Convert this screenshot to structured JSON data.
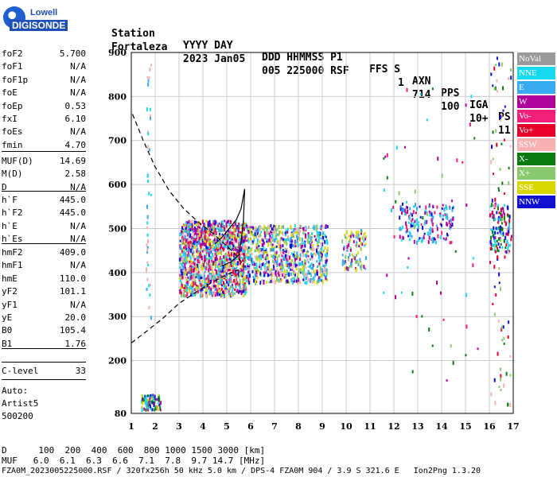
{
  "header": {
    "row1": [
      "Station",
      "YYYY DAY",
      "DDD HHMMSS P1",
      "FFS S",
      "AXN",
      "PPS",
      "IGA",
      "PS"
    ],
    "row2": [
      "Fortaleza",
      "2023 Jan05",
      "005 225000 RSF",
      "1",
      "714",
      "100",
      "10+",
      "11"
    ]
  },
  "logo": {
    "line1": "Lowell",
    "line2": "DIGISONDE"
  },
  "params": [
    {
      "name": "foF2",
      "value": "5.700"
    },
    {
      "name": "foF1",
      "value": "N/A"
    },
    {
      "name": "foF1p",
      "value": "N/A"
    },
    {
      "name": "foE",
      "value": "N/A"
    },
    {
      "name": "foEp",
      "value": "0.53"
    },
    {
      "name": "fxI",
      "value": "6.10"
    },
    {
      "name": "foEs",
      "value": "N/A"
    },
    {
      "name": "fmin",
      "value": "4.70"
    },
    {
      "name": "MUF(D)",
      "value": "14.69"
    },
    {
      "name": "M(D)",
      "value": "2.58"
    },
    {
      "name": "D",
      "value": "N/A"
    },
    {
      "name": "h`F",
      "value": "445.0"
    },
    {
      "name": "h`F2",
      "value": "445.0"
    },
    {
      "name": "h`E",
      "value": "N/A"
    },
    {
      "name": "h`Es",
      "value": "N/A"
    },
    {
      "name": "hmF2",
      "value": "409.0"
    },
    {
      "name": "hmF1",
      "value": "N/A"
    },
    {
      "name": "hmE",
      "value": "110.0"
    },
    {
      "name": "yF2",
      "value": "101.1"
    },
    {
      "name": "yF1",
      "value": "N/A"
    },
    {
      "name": "yE",
      "value": "20.0"
    },
    {
      "name": "B0",
      "value": "105.4"
    },
    {
      "name": "B1",
      "value": "1.76"
    }
  ],
  "clevel": {
    "name": "C-level",
    "value": "33"
  },
  "auto": [
    "Auto:",
    "Artist5",
    "500200"
  ],
  "legend": [
    {
      "label": "NoVal",
      "color": "#9a9a9a"
    },
    {
      "label": "NNE",
      "color": "#18d8f0"
    },
    {
      "label": "E",
      "color": "#39a9f0"
    },
    {
      "label": "W",
      "color": "#b0009a"
    },
    {
      "label": "Vo-",
      "color": "#f0207a"
    },
    {
      "label": "Vo+",
      "color": "#e8002a"
    },
    {
      "label": "SSW",
      "color": "#f8b0b0"
    },
    {
      "label": "X-",
      "color": "#0a7a10"
    },
    {
      "label": "X+",
      "color": "#8ac870"
    },
    {
      "label": "SSE",
      "color": "#d8d800"
    },
    {
      "label": "NNW",
      "color": "#1010d0"
    }
  ],
  "bottom": {
    "d_row": "D      100  200  400  600  800 1000 1500 3000 [km]",
    "muf_row": "MUF   6.0  6.1  6.3  6.6  7.1  7.8  9.7 14.7 [MHz]",
    "footer": "FZA0M_2023005225000.RSF / 320fx256h 50 kHz 5.0 km / DPS-4 FZA0M 904 / 3.9 S 321.6 E   Ion2Png 1.3.20"
  },
  "chart_data": {
    "type": "scatter",
    "x_ticks": [
      "1",
      "2",
      "3",
      "4",
      "5",
      "6",
      "7",
      "8",
      "9",
      "10",
      "11",
      "12",
      "13",
      "14",
      "15",
      "16",
      "17"
    ],
    "y_ticks": [
      "80",
      "200",
      "300",
      "400",
      "500",
      "600",
      "700",
      "800",
      "900"
    ],
    "xlim": [
      1,
      17
    ],
    "ylim": [
      80,
      900
    ],
    "grid": true,
    "clusters": [
      {
        "x": [
          3.0,
          5.8
        ],
        "y": [
          350,
          520
        ],
        "count": 1400,
        "colors": [
          "#b0009a",
          "#f0207a",
          "#18d8f0",
          "#39a9f0",
          "#f8b0b0",
          "#d8d800",
          "#e8002a",
          "#1010d0",
          "#8ac870"
        ]
      },
      {
        "x": [
          5.8,
          9.2
        ],
        "y": [
          380,
          510
        ],
        "count": 800,
        "colors": [
          "#d8d800",
          "#39a9f0",
          "#18d8f0",
          "#b0009a",
          "#8ac870",
          "#f8b0b0",
          "#1010d0"
        ]
      },
      {
        "x": [
          9.8,
          10.8
        ],
        "y": [
          410,
          500
        ],
        "count": 90,
        "colors": [
          "#d8d800",
          "#39a9f0",
          "#8ac870",
          "#b0009a"
        ]
      },
      {
        "x": [
          12.2,
          14.5
        ],
        "y": [
          470,
          560
        ],
        "count": 160,
        "colors": [
          "#b0009a",
          "#1010d0",
          "#39a9f0",
          "#f0207a",
          "#18d8f0"
        ]
      },
      {
        "x": [
          16.0,
          16.9
        ],
        "y": [
          450,
          560
        ],
        "count": 120,
        "colors": [
          "#1010d0",
          "#18d8f0",
          "#e8002a",
          "#b0009a",
          "#0a7a10"
        ]
      },
      {
        "x": [
          1.4,
          2.2
        ],
        "y": [
          90,
          125
        ],
        "count": 90,
        "colors": [
          "#1010d0",
          "#18d8f0",
          "#0a7a10",
          "#d8d800",
          "#b0009a"
        ]
      },
      {
        "x": [
          1.6,
          1.8
        ],
        "y": [
          280,
          880
        ],
        "count": 40,
        "colors": [
          "#18d8f0",
          "#39a9f0",
          "#f8b0b0"
        ]
      },
      {
        "x": [
          16.0,
          16.9
        ],
        "y": [
          100,
          900
        ],
        "count": 90,
        "colors": [
          "#0a7a10",
          "#1010d0",
          "#e8002a",
          "#f8b0b0",
          "#8ac870"
        ]
      },
      {
        "x": [
          11.5,
          15.5
        ],
        "y": [
          150,
          850
        ],
        "count": 60,
        "colors": [
          "#0a7a10",
          "#b0009a",
          "#f0207a",
          "#18d8f0",
          "#8ac870"
        ]
      }
    ],
    "profile_dashed": [
      [
        1.05,
        760
      ],
      [
        1.5,
        700
      ],
      [
        2.0,
        640
      ],
      [
        2.6,
        585
      ],
      [
        3.2,
        545
      ],
      [
        3.8,
        515
      ],
      [
        4.4,
        490
      ],
      [
        4.9,
        465
      ],
      [
        5.3,
        445
      ],
      [
        5.6,
        425
      ],
      [
        5.7,
        412
      ]
    ],
    "profile_dashed_low": [
      [
        1.0,
        240
      ],
      [
        1.6,
        265
      ],
      [
        2.3,
        295
      ],
      [
        3.0,
        330
      ],
      [
        3.7,
        355
      ],
      [
        4.3,
        375
      ],
      [
        4.8,
        390
      ],
      [
        5.2,
        400
      ],
      [
        5.5,
        406
      ]
    ],
    "trace_solid": [
      [
        4.5,
        465
      ],
      [
        4.8,
        480
      ],
      [
        5.1,
        500
      ],
      [
        5.4,
        520
      ],
      [
        5.6,
        545
      ],
      [
        5.75,
        590
      ],
      [
        5.7,
        520
      ],
      [
        5.6,
        470
      ],
      [
        5.5,
        440
      ],
      [
        5.2,
        425
      ],
      [
        4.8,
        415
      ]
    ]
  }
}
